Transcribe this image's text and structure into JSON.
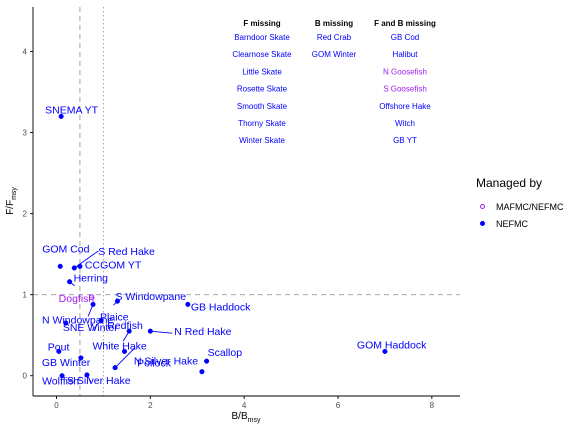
{
  "chart_data": {
    "type": "scatter",
    "title": "",
    "xlabel": "B/B",
    "xlabel_sub": "msy",
    "ylabel": "F/F",
    "ylabel_sub": "msy",
    "xlim": [
      -0.5,
      8.6
    ],
    "ylim": [
      -0.25,
      4.55
    ],
    "xticks": [
      0,
      2,
      4,
      6,
      8
    ],
    "yticks": [
      0,
      1,
      2,
      3,
      4
    ],
    "grid": false,
    "legend_position": "right",
    "reference_lines": [
      {
        "axis": "x",
        "value": 0.5,
        "style": "dashed"
      },
      {
        "axis": "x",
        "value": 1.0,
        "style": "dotted"
      },
      {
        "axis": "y",
        "value": 1.0,
        "style": "dashed"
      }
    ],
    "legend": {
      "title": "Managed by",
      "entries": [
        {
          "name": "MAFMC/NEFMC",
          "color": "#a020f0",
          "marker": "open-circle"
        },
        {
          "name": "NEFMC",
          "color": "#0000ff",
          "marker": "filled-circle"
        }
      ]
    },
    "series": [
      {
        "name": "MAFMC/NEFMC",
        "color": "#a020f0",
        "points": [
          {
            "label": "Dogfish",
            "x": 0.75,
            "y": 0.97
          }
        ]
      },
      {
        "name": "NEFMC",
        "color": "#0000ff",
        "points": [
          {
            "label": "SNEMA YT",
            "x": 0.1,
            "y": 3.2
          },
          {
            "label": "GOM Cod",
            "x": 0.08,
            "y": 1.35
          },
          {
            "label": "S Red Hake",
            "x": 0.38,
            "y": 1.33
          },
          {
            "label": "CCGOM YT",
            "x": 0.5,
            "y": 1.35
          },
          {
            "label": "Herring",
            "x": 0.28,
            "y": 1.16
          },
          {
            "label": "S Windowpane",
            "x": 1.3,
            "y": 0.92
          },
          {
            "label": "GB Haddock",
            "x": 2.8,
            "y": 0.88
          },
          {
            "label": "N Windowpane",
            "x": 0.78,
            "y": 0.88
          },
          {
            "label": "Plaice",
            "x": 0.95,
            "y": 0.68
          },
          {
            "label": "SNE Winter",
            "x": 0.2,
            "y": 0.65
          },
          {
            "label": "Redfish",
            "x": 1.55,
            "y": 0.55
          },
          {
            "label": "N Red Hake",
            "x": 2.0,
            "y": 0.55
          },
          {
            "label": "White Hake",
            "x": 1.45,
            "y": 0.3
          },
          {
            "label": "Pout",
            "x": 0.05,
            "y": 0.3
          },
          {
            "label": "Pollock",
            "x": 1.25,
            "y": 0.1
          },
          {
            "label": "Scallop",
            "x": 3.2,
            "y": 0.18
          },
          {
            "label": "N Silver Hake",
            "x": 3.1,
            "y": 0.05
          },
          {
            "label": "GB Winter",
            "x": 0.52,
            "y": 0.22
          },
          {
            "label": "Wolffish",
            "x": 0.12,
            "y": 0.0
          },
          {
            "label": "S Silver Hake",
            "x": 0.65,
            "y": 0.01
          },
          {
            "label": "GOM Haddock",
            "x": 7.0,
            "y": 0.3
          }
        ]
      }
    ],
    "annotation_table": {
      "columns": [
        {
          "header": "F missing",
          "items": [
            {
              "text": "Barndoor Skate",
              "color": "#0000ff"
            },
            {
              "text": "Clearnose Skate",
              "color": "#0000ff"
            },
            {
              "text": "Little Skate",
              "color": "#0000ff"
            },
            {
              "text": "Rosette Skate",
              "color": "#0000ff"
            },
            {
              "text": "Smooth Skate",
              "color": "#0000ff"
            },
            {
              "text": "Thorny Skate",
              "color": "#0000ff"
            },
            {
              "text": "Winter Skate",
              "color": "#0000ff"
            }
          ]
        },
        {
          "header": "B missing",
          "items": [
            {
              "text": "Red Crab",
              "color": "#0000ff"
            },
            {
              "text": "GOM Winter",
              "color": "#0000ff"
            }
          ]
        },
        {
          "header": "F and B missing",
          "items": [
            {
              "text": "GB Cod",
              "color": "#0000ff"
            },
            {
              "text": "Halibut",
              "color": "#0000ff"
            },
            {
              "text": "N Goosefish",
              "color": "#a020f0"
            },
            {
              "text": "S Goosefish",
              "color": "#a020f0"
            },
            {
              "text": "Offshore Hake",
              "color": "#0000ff"
            },
            {
              "text": "Witch",
              "color": "#0000ff"
            },
            {
              "text": "GB YT",
              "color": "#0000ff"
            }
          ]
        }
      ]
    }
  }
}
